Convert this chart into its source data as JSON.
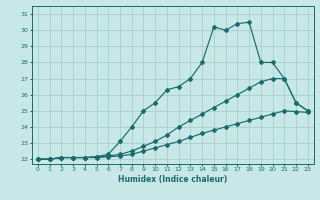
{
  "xlabel": "Humidex (Indice chaleur)",
  "background_color": "#c8e8e8",
  "grid_color": "#a8cece",
  "line_color": "#1a6b6b",
  "xlim": [
    -0.5,
    23.5
  ],
  "ylim": [
    21.7,
    31.5
  ],
  "xticks": [
    0,
    1,
    2,
    3,
    4,
    5,
    6,
    7,
    8,
    9,
    10,
    11,
    12,
    13,
    14,
    15,
    16,
    17,
    18,
    19,
    20,
    21,
    22,
    23
  ],
  "yticks": [
    22,
    23,
    24,
    25,
    26,
    27,
    28,
    29,
    30,
    31
  ],
  "line1_x": [
    0,
    1,
    2,
    3,
    4,
    5,
    6,
    7,
    8,
    9,
    10,
    11,
    12,
    13,
    14,
    15,
    16,
    17,
    18,
    19,
    20,
    21,
    22,
    23
  ],
  "line1_y": [
    22.0,
    22.0,
    22.1,
    22.1,
    22.1,
    22.1,
    22.15,
    22.2,
    22.3,
    22.5,
    22.7,
    22.9,
    23.1,
    23.35,
    23.6,
    23.8,
    24.0,
    24.2,
    24.4,
    24.6,
    24.8,
    25.0,
    24.95,
    24.9
  ],
  "line2_x": [
    0,
    1,
    2,
    3,
    4,
    5,
    6,
    7,
    8,
    9,
    10,
    11,
    12,
    13,
    14,
    15,
    16,
    17,
    18,
    19,
    20,
    21,
    22,
    23
  ],
  "line2_y": [
    22.0,
    22.0,
    22.1,
    22.1,
    22.1,
    22.15,
    22.2,
    22.3,
    22.5,
    22.8,
    23.1,
    23.5,
    24.0,
    24.4,
    24.8,
    25.2,
    25.6,
    26.0,
    26.4,
    26.8,
    27.0,
    27.0,
    25.5,
    25.0
  ],
  "line3_x": [
    0,
    1,
    2,
    3,
    4,
    5,
    6,
    7,
    8,
    9,
    10,
    11,
    12,
    13,
    14,
    15,
    16,
    17,
    18,
    19,
    20,
    21,
    22,
    23
  ],
  "line3_y": [
    22.0,
    22.0,
    22.1,
    22.1,
    22.1,
    22.15,
    22.3,
    23.1,
    24.0,
    25.0,
    25.5,
    26.3,
    26.5,
    27.0,
    28.0,
    30.2,
    30.0,
    30.4,
    30.5,
    28.0,
    28.0,
    27.0,
    25.5,
    25.0
  ]
}
